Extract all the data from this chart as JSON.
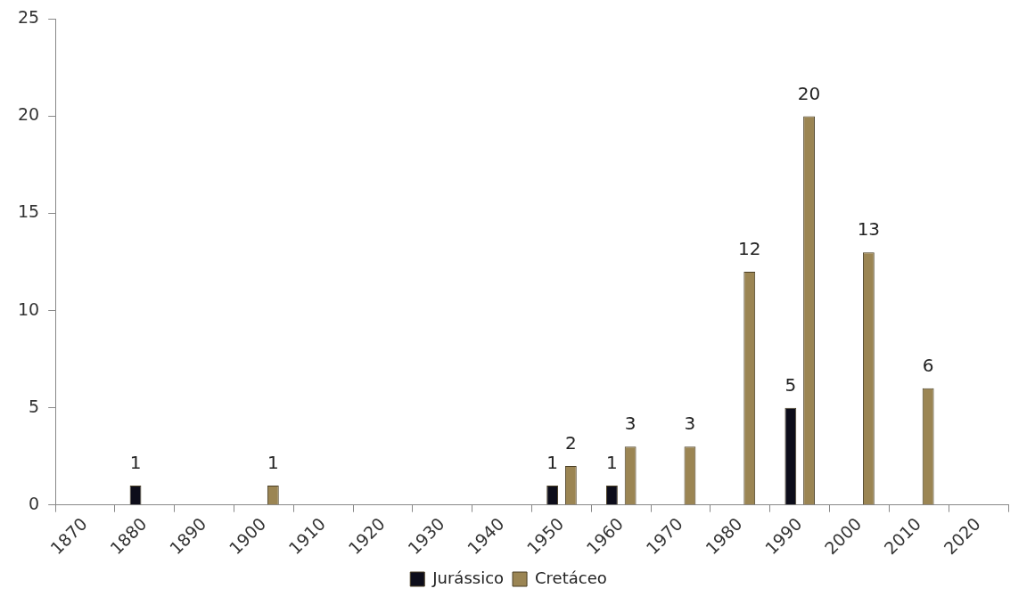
{
  "chart_data": {
    "type": "bar",
    "categories": [
      "1870",
      "1880",
      "1890",
      "1900",
      "1910",
      "1920",
      "1930",
      "1940",
      "1950",
      "1960",
      "1970",
      "1980",
      "1990",
      "2000",
      "2010",
      "2020"
    ],
    "series": [
      {
        "name": "Jurássico",
        "color": "#0d0d1a",
        "values": [
          null,
          1,
          null,
          null,
          null,
          null,
          null,
          null,
          1,
          1,
          null,
          null,
          5,
          null,
          null,
          null
        ]
      },
      {
        "name": "Cretáceo",
        "color": "#9b8553",
        "values": [
          null,
          null,
          null,
          1,
          null,
          null,
          null,
          null,
          2,
          3,
          3,
          12,
          20,
          13,
          6,
          null
        ]
      }
    ],
    "ylim": [
      0,
      25
    ],
    "yticks": [
      0,
      5,
      10,
      15,
      20,
      25
    ],
    "grid": false,
    "legend": "bottom",
    "data_labels": true
  }
}
